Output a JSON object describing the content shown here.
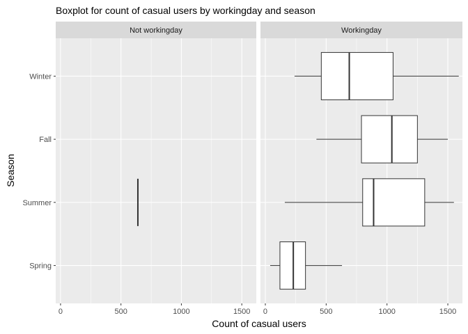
{
  "chart_data": {
    "type": "boxplot",
    "title": "Boxplot for count of casual users by workingday and season",
    "xlabel": "Count of casual users",
    "ylabel": "Season",
    "xlim": [
      -40,
      1620
    ],
    "x_ticks": [
      0,
      500,
      1000,
      1500
    ],
    "categories": [
      "Spring",
      "Summer",
      "Fall",
      "Winter"
    ],
    "grid": true,
    "colors": {
      "panel_bg": "#ebebeb",
      "strip_bg": "#d9d9d9",
      "grid": "#ffffff",
      "box_fill": "#ffffff",
      "box_stroke": "#333333"
    },
    "facets": [
      {
        "label": "Not workingday",
        "boxes": [
          {
            "category": "Summer",
            "min": 640,
            "q1": 640,
            "median": 640,
            "q3": 640,
            "max": 640
          }
        ]
      },
      {
        "label": "Workingday",
        "boxes": [
          {
            "category": "Spring",
            "min": 40,
            "q1": 120,
            "median": 230,
            "q3": 330,
            "max": 630
          },
          {
            "category": "Summer",
            "min": 160,
            "q1": 800,
            "median": 890,
            "q3": 1310,
            "max": 1550
          },
          {
            "category": "Fall",
            "min": 420,
            "q1": 790,
            "median": 1040,
            "q3": 1250,
            "max": 1500
          },
          {
            "category": "Winter",
            "min": 240,
            "q1": 460,
            "median": 690,
            "q3": 1050,
            "max": 1590
          }
        ]
      }
    ]
  }
}
